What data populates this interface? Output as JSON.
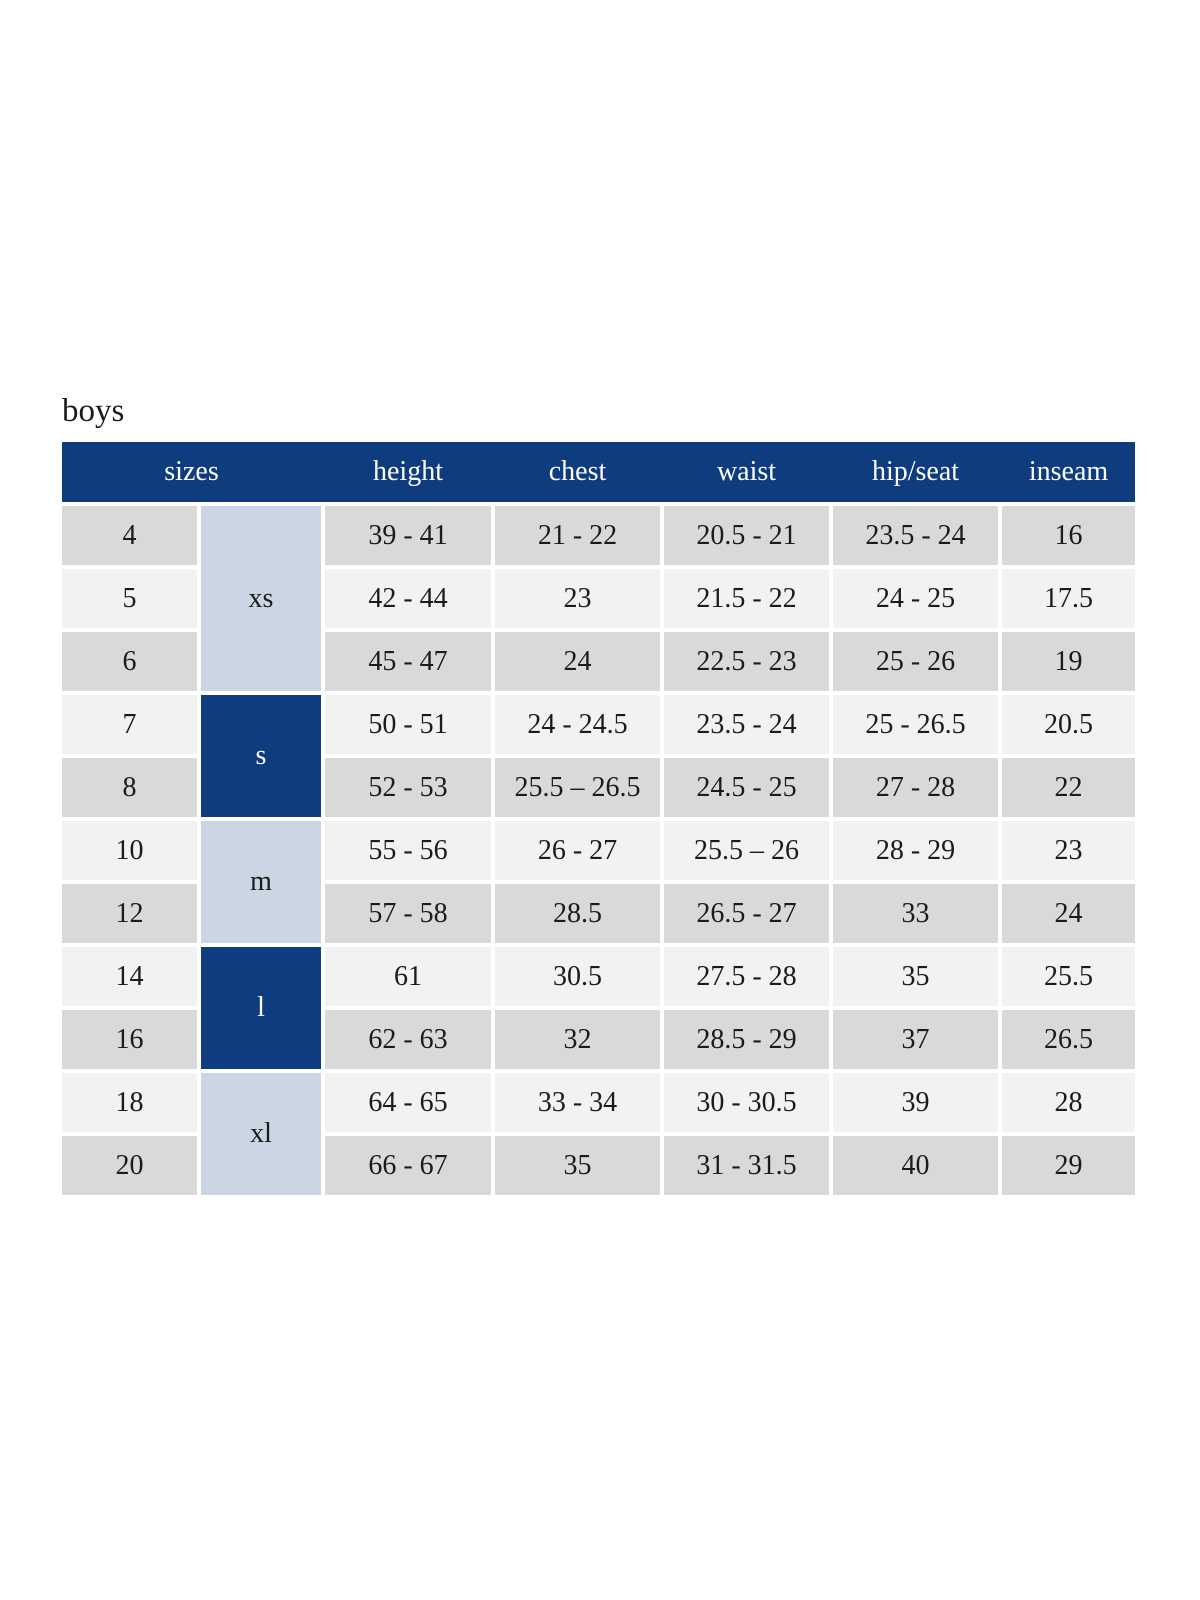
{
  "page": {
    "title": "boys"
  },
  "colors": {
    "navy": "#0e3c7e",
    "light_blue": "#cbd6e4",
    "row_dark": "#d9d9d9",
    "row_light": "#f2f2f2",
    "header_text": "#ffffff",
    "text": "#1b1b1b"
  },
  "table": {
    "headers": {
      "sizes": "sizes",
      "height": "height",
      "chest": "chest",
      "waist": "waist",
      "hip_seat": "hip/seat",
      "inseam": "inseam"
    },
    "groups": {
      "xs": "xs",
      "s": "s",
      "m": "m",
      "l": "l",
      "xl": "xl"
    },
    "rows": [
      {
        "size": "4",
        "height": "39 - 41",
        "chest": "21 - 22",
        "waist": "20.5 - 21",
        "hip_seat": "23.5 - 24",
        "inseam": "16"
      },
      {
        "size": "5",
        "height": "42 - 44",
        "chest": "23",
        "waist": "21.5 - 22",
        "hip_seat": "24 - 25",
        "inseam": "17.5"
      },
      {
        "size": "6",
        "height": "45 - 47",
        "chest": "24",
        "waist": "22.5 - 23",
        "hip_seat": "25 - 26",
        "inseam": "19"
      },
      {
        "size": "7",
        "height": "50 - 51",
        "chest": "24 - 24.5",
        "waist": "23.5 - 24",
        "hip_seat": "25 - 26.5",
        "inseam": "20.5"
      },
      {
        "size": "8",
        "height": "52 - 53",
        "chest": "25.5 – 26.5",
        "waist": "24.5 - 25",
        "hip_seat": "27 - 28",
        "inseam": "22"
      },
      {
        "size": "10",
        "height": "55 - 56",
        "chest": "26 - 27",
        "waist": "25.5 – 26",
        "hip_seat": "28 - 29",
        "inseam": "23"
      },
      {
        "size": "12",
        "height": "57 - 58",
        "chest": "28.5",
        "waist": "26.5 - 27",
        "hip_seat": "33",
        "inseam": "24"
      },
      {
        "size": "14",
        "height": "61",
        "chest": "30.5",
        "waist": "27.5 - 28",
        "hip_seat": "35",
        "inseam": "25.5"
      },
      {
        "size": "16",
        "height": "62 - 63",
        "chest": "32",
        "waist": "28.5 - 29",
        "hip_seat": "37",
        "inseam": "26.5"
      },
      {
        "size": "18",
        "height": "64 - 65",
        "chest": "33 - 34",
        "waist": "30 - 30.5",
        "hip_seat": "39",
        "inseam": "28"
      },
      {
        "size": "20",
        "height": "66 - 67",
        "chest": "35",
        "waist": "31 - 31.5",
        "hip_seat": "40",
        "inseam": "29"
      }
    ]
  },
  "chart_data": {
    "type": "table",
    "title": "boys",
    "columns": [
      "sizes",
      "height",
      "chest",
      "waist",
      "hip/seat",
      "inseam"
    ],
    "size_groups": [
      {
        "label": "xs",
        "sizes": [
          "4",
          "5",
          "6"
        ]
      },
      {
        "label": "s",
        "sizes": [
          "7",
          "8"
        ]
      },
      {
        "label": "m",
        "sizes": [
          "10",
          "12"
        ]
      },
      {
        "label": "l",
        "sizes": [
          "14",
          "16"
        ]
      },
      {
        "label": "xl",
        "sizes": [
          "18",
          "20"
        ]
      }
    ],
    "rows": [
      [
        "4",
        "39 - 41",
        "21 - 22",
        "20.5 - 21",
        "23.5 - 24",
        "16"
      ],
      [
        "5",
        "42 - 44",
        "23",
        "21.5 - 22",
        "24 - 25",
        "17.5"
      ],
      [
        "6",
        "45 - 47",
        "24",
        "22.5 - 23",
        "25 - 26",
        "19"
      ],
      [
        "7",
        "50 - 51",
        "24 - 24.5",
        "23.5 - 24",
        "25 - 26.5",
        "20.5"
      ],
      [
        "8",
        "52 - 53",
        "25.5 – 26.5",
        "24.5 - 25",
        "27 - 28",
        "22"
      ],
      [
        "10",
        "55 - 56",
        "26 - 27",
        "25.5 – 26",
        "28 - 29",
        "23"
      ],
      [
        "12",
        "57 - 58",
        "28.5",
        "26.5 - 27",
        "33",
        "24"
      ],
      [
        "14",
        "61",
        "30.5",
        "27.5 - 28",
        "35",
        "25.5"
      ],
      [
        "16",
        "62 - 63",
        "32",
        "28.5 - 29",
        "37",
        "26.5"
      ],
      [
        "18",
        "64 - 65",
        "33 - 34",
        "30 - 30.5",
        "39",
        "28"
      ],
      [
        "20",
        "66 - 67",
        "35",
        "31 - 31.5",
        "40",
        "29"
      ]
    ],
    "layout": {
      "header_background": "#0e3c7e",
      "row_striping": true,
      "merged_group_column": true
    }
  }
}
